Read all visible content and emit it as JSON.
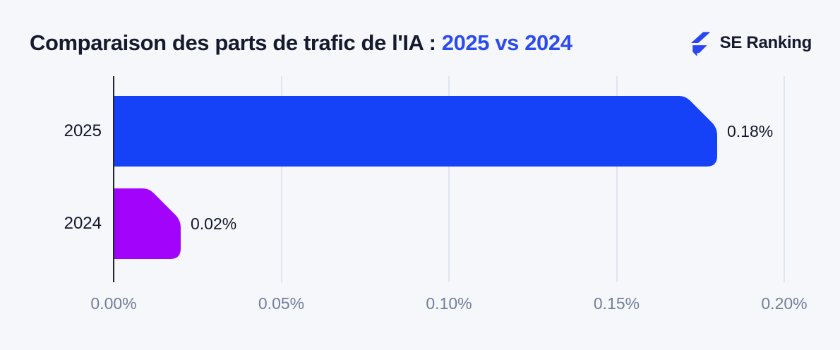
{
  "title": {
    "main": "Comparaison des parts de trafic de l'IA : ",
    "highlight": "2025 vs 2024"
  },
  "logo": {
    "name": "SE Ranking"
  },
  "colors": {
    "background": "#F6F7FB",
    "title_dark": "#161A2E",
    "title_highlight": "#2B4BF0",
    "logo_blue": "#2A46EF",
    "axis_line": "#1E2433",
    "gridline": "#DFE5F1",
    "tick_text": "#727E9A",
    "label_text": "#13172B",
    "bar_2025": "#1541F7",
    "bar_2024": "#A203FB"
  },
  "chart_data": {
    "type": "bar",
    "orientation": "horizontal",
    "title": "Comparaison des parts de trafic de l'IA : 2025 vs 2024",
    "categories": [
      "2025",
      "2024"
    ],
    "values": [
      0.18,
      0.02
    ],
    "value_labels": [
      "0.18%",
      "0.02%"
    ],
    "series_colors": [
      "#1541F7",
      "#A203FB"
    ],
    "xlabel": "",
    "ylabel": "",
    "xlim": [
      0,
      0.2
    ],
    "x_ticks": [
      0,
      0.05,
      0.1,
      0.15,
      0.2
    ],
    "x_tick_labels": [
      "0.00%",
      "0.05%",
      "0.10%",
      "0.15%",
      "0.20%"
    ],
    "grid": "vertical",
    "legend_position": "none"
  }
}
